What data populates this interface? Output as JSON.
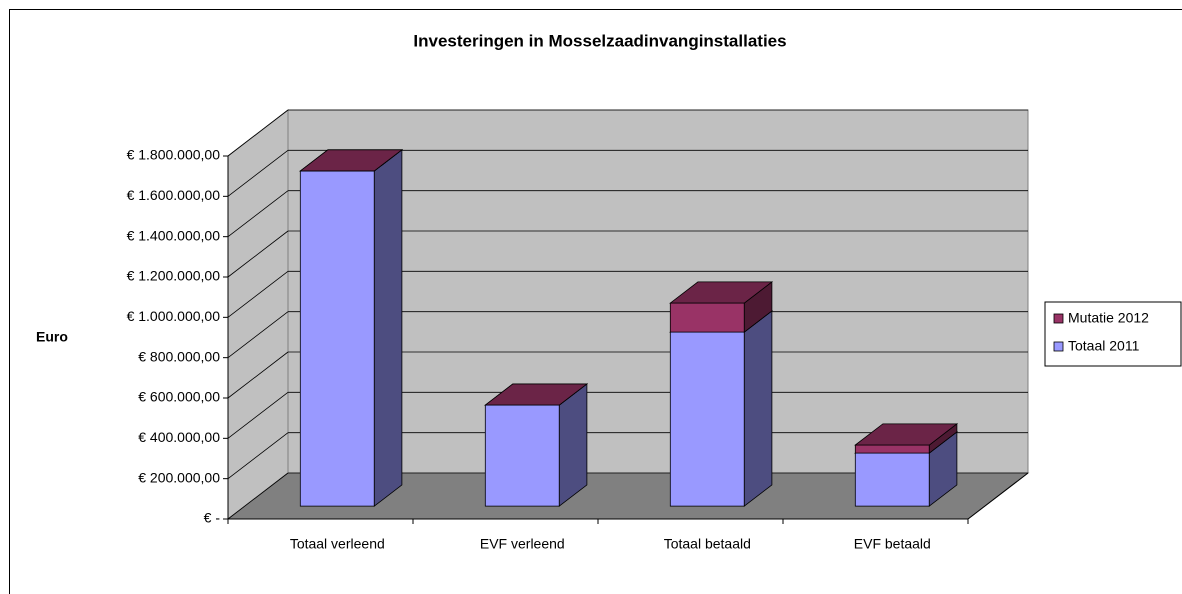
{
  "chart_data": {
    "type": "bar3d_stacked",
    "title": "Investeringen in Mosselzaadinvanginstallaties",
    "y_label": "Euro",
    "categories": [
      "Totaal verleend",
      "EVF verleend",
      "Totaal betaald",
      "EVF betaald"
    ],
    "series": [
      {
        "name": "Totaal 2011",
        "color": "#9999ff",
        "values": [
          1662000,
          501000,
          863000,
          263000
        ]
      },
      {
        "name": "Mutatie 2012",
        "color": "#993366",
        "values": [
          0,
          0,
          144000,
          40000
        ]
      }
    ],
    "ylim": [
      0,
      1800000
    ],
    "yticks": [
      {
        "value": 0,
        "label": "€ -"
      },
      {
        "value": 200000,
        "label": "€ 200.000,00"
      },
      {
        "value": 400000,
        "label": "€ 400.000,00"
      },
      {
        "value": 600000,
        "label": "€ 600.000,00"
      },
      {
        "value": 800000,
        "label": "€ 800.000,00"
      },
      {
        "value": 1000000,
        "label": "€ 1.000.000,00"
      },
      {
        "value": 1200000,
        "label": "€ 1.200.000,00"
      },
      {
        "value": 1400000,
        "label": "€ 1.400.000,00"
      },
      {
        "value": 1600000,
        "label": "€ 1.600.000,00"
      },
      {
        "value": 1800000,
        "label": "€ 1.800.000,00"
      }
    ],
    "grid": true,
    "legend": "right"
  }
}
